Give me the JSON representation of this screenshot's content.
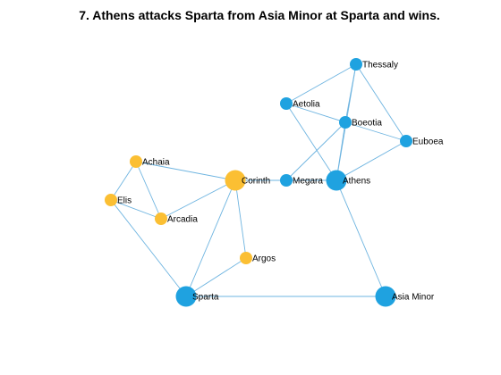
{
  "title": "7. Athens attacks Sparta from Asia Minor at Sparta and wins.",
  "colors": {
    "blue": "#1fa2e0",
    "orange": "#fbbf33",
    "edge": "#6eb4e0"
  },
  "nodes": [
    {
      "id": "Thessaly",
      "label": "Thessaly",
      "side": "blue",
      "size": "small"
    },
    {
      "id": "Aetolia",
      "label": "Aetolia",
      "side": "blue",
      "size": "small"
    },
    {
      "id": "Boeotia",
      "label": "Boeotia",
      "side": "blue",
      "size": "small"
    },
    {
      "id": "Euboea",
      "label": "Euboea",
      "side": "blue",
      "size": "small"
    },
    {
      "id": "Megara",
      "label": "Megara",
      "side": "blue",
      "size": "small"
    },
    {
      "id": "Athens",
      "label": "Athens",
      "side": "blue",
      "size": "large"
    },
    {
      "id": "Sparta",
      "label": "Sparta",
      "side": "blue",
      "size": "large"
    },
    {
      "id": "AsiaMinor",
      "label": "Asia Minor",
      "side": "blue",
      "size": "large"
    },
    {
      "id": "Achaia",
      "label": "Achaia",
      "side": "orange",
      "size": "small"
    },
    {
      "id": "Elis",
      "label": "Elis",
      "side": "orange",
      "size": "small"
    },
    {
      "id": "Arcadia",
      "label": "Arcadia",
      "side": "orange",
      "size": "small"
    },
    {
      "id": "Corinth",
      "label": "Corinth",
      "side": "orange",
      "size": "large"
    },
    {
      "id": "Argos",
      "label": "Argos",
      "side": "orange",
      "size": "small"
    }
  ],
  "edges": [
    [
      "Thessaly",
      "Aetolia"
    ],
    [
      "Thessaly",
      "Boeotia"
    ],
    [
      "Thessaly",
      "Euboea"
    ],
    [
      "Thessaly",
      "Athens"
    ],
    [
      "Aetolia",
      "Boeotia"
    ],
    [
      "Aetolia",
      "Athens"
    ],
    [
      "Boeotia",
      "Euboea"
    ],
    [
      "Boeotia",
      "Megara"
    ],
    [
      "Boeotia",
      "Athens"
    ],
    [
      "Euboea",
      "Athens"
    ],
    [
      "Megara",
      "Athens"
    ],
    [
      "Megara",
      "Corinth"
    ],
    [
      "Athens",
      "AsiaMinor"
    ],
    [
      "Sparta",
      "AsiaMinor"
    ],
    [
      "Sparta",
      "Elis"
    ],
    [
      "Sparta",
      "Corinth"
    ],
    [
      "Sparta",
      "Argos"
    ],
    [
      "Corinth",
      "Argos"
    ],
    [
      "Corinth",
      "Achaia"
    ],
    [
      "Corinth",
      "Arcadia"
    ],
    [
      "Achaia",
      "Elis"
    ],
    [
      "Achaia",
      "Arcadia"
    ],
    [
      "Elis",
      "Arcadia"
    ]
  ]
}
